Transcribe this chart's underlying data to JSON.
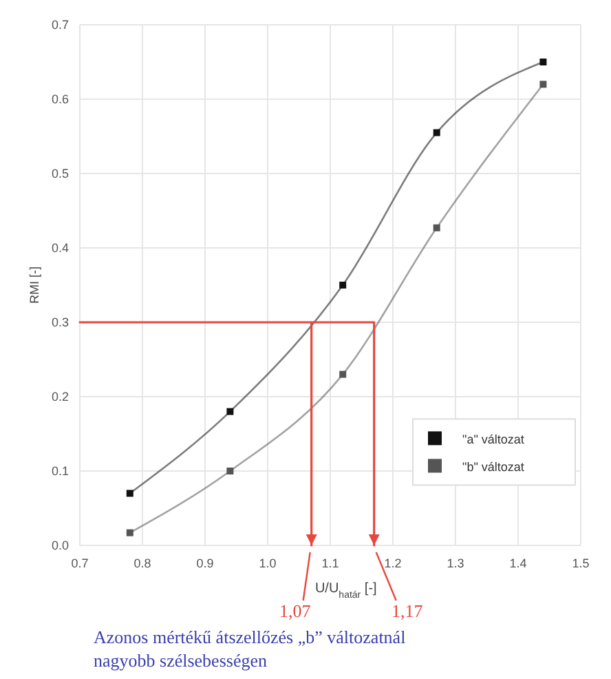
{
  "chart_data": {
    "type": "line",
    "xlabel": "U/U$_{határ}$ [-]",
    "ylabel": "RMI [-]",
    "xlim": [
      0.7,
      1.5
    ],
    "xticks": [
      0.7,
      0.8,
      0.9,
      {
        "value": 1,
        "label": "1.0"
      },
      1.1,
      1.2,
      1.3,
      1.4,
      1.5
    ],
    "ylim": [
      0,
      0.7
    ],
    "yticks": [
      {
        "value": 0,
        "label": "0.0"
      },
      0.1,
      0.2,
      0.3,
      0.4,
      0.5,
      0.6,
      0.7
    ],
    "grid": true,
    "legend": "bottom right",
    "marker": "square",
    "line_style": "solid",
    "series": [
      {
        "name": "\"a\" változat",
        "color": "#111111",
        "x": [
          0.78,
          0.94,
          1.12,
          1.27,
          1.44
        ],
        "values": [
          0.07,
          0.18,
          0.35,
          0.555,
          0.65
        ]
      },
      {
        "name": "\"b\" változat",
        "color": "#555555",
        "x": [
          0.78,
          0.94,
          1.12,
          1.27,
          1.44
        ],
        "values": [
          0.017,
          0.1,
          0.23,
          0.427,
          0.62
        ]
      },
      {
        "color": "#e8473c",
        "marker": "none",
        "x": [
          1.07,
          1.07,
          0.7,
          1.17,
          1.17
        ],
        "values": [
          0,
          0.3,
          0.3,
          0.3,
          0
        ]
      }
    ],
    "annotations": [
      {
        "text": "1,07",
        "x": 1.07,
        "y": 0
      },
      {
        "text": "1,17",
        "x": 1.17,
        "y": 0
      },
      "Azonos mértékű átszellőzés „b” változatnál nagyobb szélsebességen"
    ]
  }
}
